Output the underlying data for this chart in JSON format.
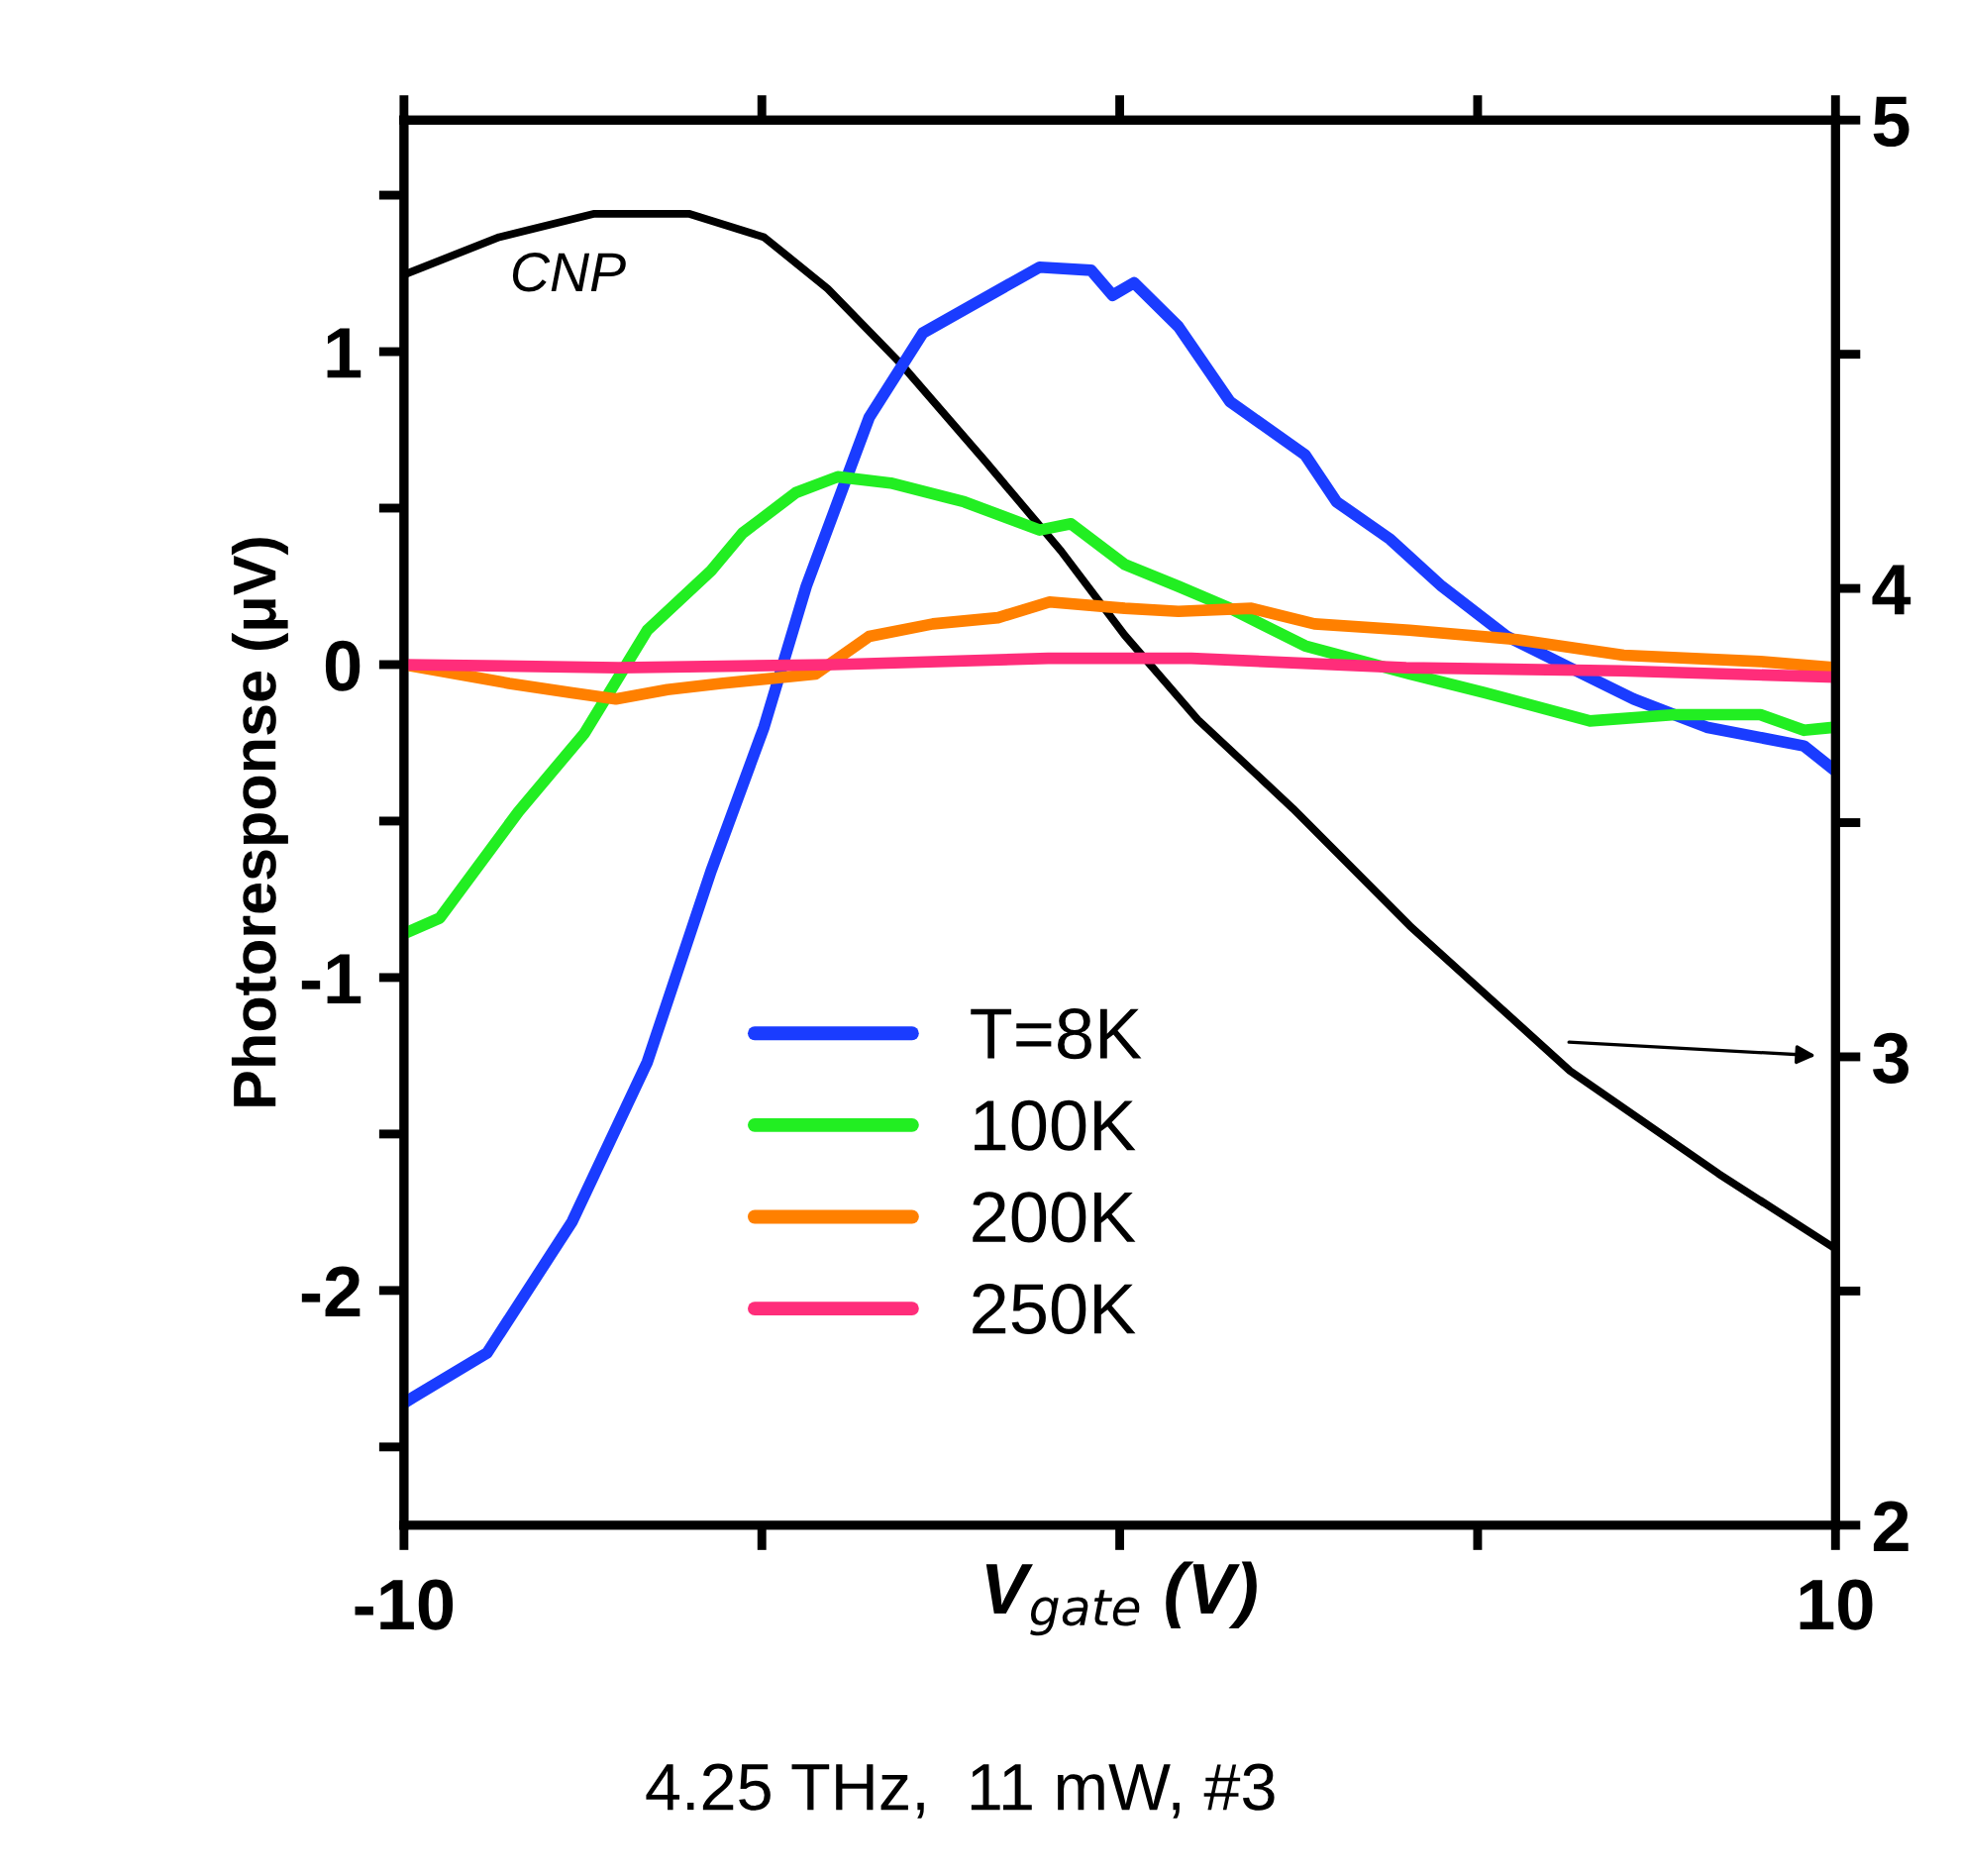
{
  "chart_data": {
    "type": "line",
    "xlabel": "V$_{gate}$ (V)",
    "ylabel": "Photoresponse (μV)",
    "xlim": [
      -10,
      10
    ],
    "xticks": [
      -10,
      {
        "value": -5,
        "label": null
      },
      {
        "value": 0,
        "label": null
      },
      {
        "value": 5,
        "label": null
      },
      10
    ],
    "ylim": [
      -2.75,
      1.74
    ],
    "yticks": [
      {
        "value": -2.5,
        "label": null
      },
      -2,
      {
        "value": -1.5,
        "label": null
      },
      -1,
      {
        "value": -0.5,
        "label": null
      },
      0,
      {
        "value": 0.5,
        "label": null
      },
      1,
      {
        "value": 1.5,
        "label": null
      }
    ],
    "y2lim": [
      2,
      5
    ],
    "y2ticks": [
      2,
      {
        "value": 2.5,
        "label": null
      },
      3,
      {
        "value": 3.5,
        "label": null
      },
      4,
      {
        "value": 4.5,
        "label": null
      },
      5
    ],
    "grid": false,
    "legend": "bottom left",
    "marker": "none",
    "line_style": "solid",
    "series": [
      {
        "name": "T=8K",
        "color": "#1a3cff",
        "x": [
          -10,
          -9.86,
          -8.84,
          -7.65,
          -6.6,
          -5.71,
          -4.97,
          -4.38,
          -3.5,
          -2.75,
          -1.12,
          -0.4,
          -0.1,
          0.2,
          0.82,
          1.54,
          2.59,
          3.03,
          3.78,
          4.5,
          5.41,
          6.29,
          7.18,
          8.2,
          9.56,
          10
        ],
        "values": [
          -2.36,
          -2.34,
          -2.2,
          -1.78,
          -1.27,
          -0.66,
          -0.2,
          0.25,
          0.79,
          1.06,
          1.27,
          1.26,
          1.18,
          1.22,
          1.08,
          0.84,
          0.67,
          0.52,
          0.4,
          0.25,
          0.09,
          -0.01,
          -0.11,
          -0.2,
          -0.26,
          -0.34
        ]
      },
      {
        "name": "100K",
        "color": "#22ee22",
        "x": [
          -10,
          -9.5,
          -8.4,
          -7.48,
          -6.6,
          -5.71,
          -5.27,
          -4.52,
          -3.94,
          -3.2,
          -2.17,
          -1.12,
          -0.68,
          0.07,
          0.82,
          1.54,
          2.59,
          4.05,
          5.1,
          6.57,
          7.76,
          8.95,
          9.56,
          10
        ],
        "values": [
          -0.86,
          -0.81,
          -0.47,
          -0.22,
          0.11,
          0.3,
          0.42,
          0.55,
          0.6,
          0.58,
          0.52,
          0.43,
          0.45,
          0.32,
          0.25,
          0.18,
          0.06,
          -0.03,
          -0.09,
          -0.18,
          -0.16,
          -0.16,
          -0.21,
          -0.2
        ]
      },
      {
        "name": "200K",
        "color": "#ff8000",
        "x": [
          -10,
          -8.53,
          -7.65,
          -7.04,
          -6.32,
          -5.57,
          -4.25,
          -3.5,
          -2.61,
          -1.7,
          -0.98,
          0.07,
          0.82,
          1.84,
          2.72,
          4.05,
          5.55,
          7.04,
          8.95,
          10
        ],
        "values": [
          0,
          -0.06,
          -0.09,
          -0.11,
          -0.08,
          -0.06,
          -0.03,
          0.09,
          0.13,
          0.15,
          0.2,
          0.18,
          0.17,
          0.18,
          0.13,
          0.11,
          0.08,
          0.03,
          0.01,
          -0.01
        ]
      },
      {
        "name": "250K",
        "color": "#ff2d7a",
        "x": [
          -10,
          -7,
          -4,
          -1,
          1,
          4,
          7,
          10
        ],
        "values": [
          0,
          -0.01,
          0,
          0.02,
          0.02,
          -0.01,
          -0.02,
          -0.04
        ]
      },
      {
        "name": "CNP",
        "color": "#000000",
        "axis": "y2",
        "x": [
          -10,
          -8.67,
          -7.34,
          -6.02,
          -4.97,
          -4.08,
          -3.06,
          -1.87,
          -0.82,
          0.07,
          1.09,
          2.42,
          4.05,
          6.29,
          8.37,
          10
        ],
        "values": [
          4.67,
          4.75,
          4.8,
          4.8,
          4.75,
          4.64,
          4.48,
          4.27,
          4.08,
          3.9,
          3.72,
          3.53,
          3.28,
          2.97,
          2.75,
          2.59
        ]
      }
    ],
    "annotations": [
      "4.25 THz,  11 mW, #3"
    ]
  }
}
